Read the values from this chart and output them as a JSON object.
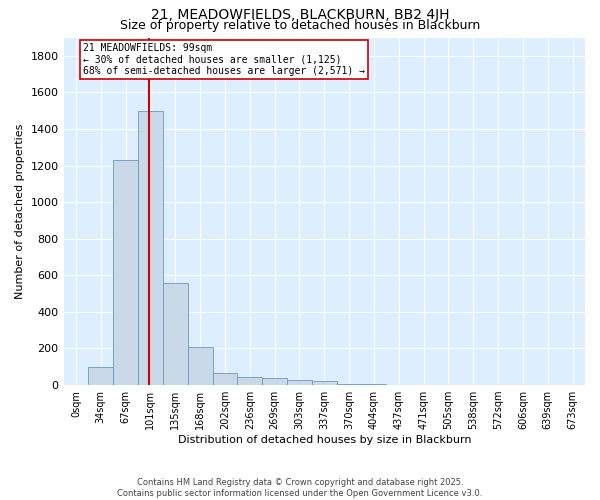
{
  "title": "21, MEADOWFIELDS, BLACKBURN, BB2 4JH",
  "subtitle": "Size of property relative to detached houses in Blackburn",
  "xlabel": "Distribution of detached houses by size in Blackburn",
  "ylabel": "Number of detached properties",
  "categories": [
    "0sqm",
    "34sqm",
    "67sqm",
    "101sqm",
    "135sqm",
    "168sqm",
    "202sqm",
    "236sqm",
    "269sqm",
    "303sqm",
    "337sqm",
    "370sqm",
    "404sqm",
    "437sqm",
    "471sqm",
    "505sqm",
    "538sqm",
    "572sqm",
    "606sqm",
    "639sqm",
    "673sqm"
  ],
  "values": [
    0,
    98,
    1230,
    1500,
    560,
    210,
    65,
    45,
    38,
    28,
    22,
    8,
    4,
    2,
    1,
    1,
    0,
    0,
    0,
    0,
    0
  ],
  "bar_color": "#c9d9e8",
  "bar_edge_color": "#6699cc",
  "vline_x": 2.94,
  "vline_color": "#cc0000",
  "annotation_text": "21 MEADOWFIELDS: 99sqm\n← 30% of detached houses are smaller (1,125)\n68% of semi-detached houses are larger (2,571) →",
  "annotation_box_color": "#cc0000",
  "ylim": [
    0,
    1900
  ],
  "yticks": [
    0,
    200,
    400,
    600,
    800,
    1000,
    1200,
    1400,
    1600,
    1800
  ],
  "bg_color": "#ddeeff",
  "footer": "Contains HM Land Registry data © Crown copyright and database right 2025.\nContains public sector information licensed under the Open Government Licence v3.0.",
  "title_fontsize": 10,
  "subtitle_fontsize": 9,
  "ylabel_fontsize": 8,
  "xlabel_fontsize": 8,
  "annotation_fontsize": 7,
  "tick_fontsize": 7,
  "ytick_fontsize": 8
}
